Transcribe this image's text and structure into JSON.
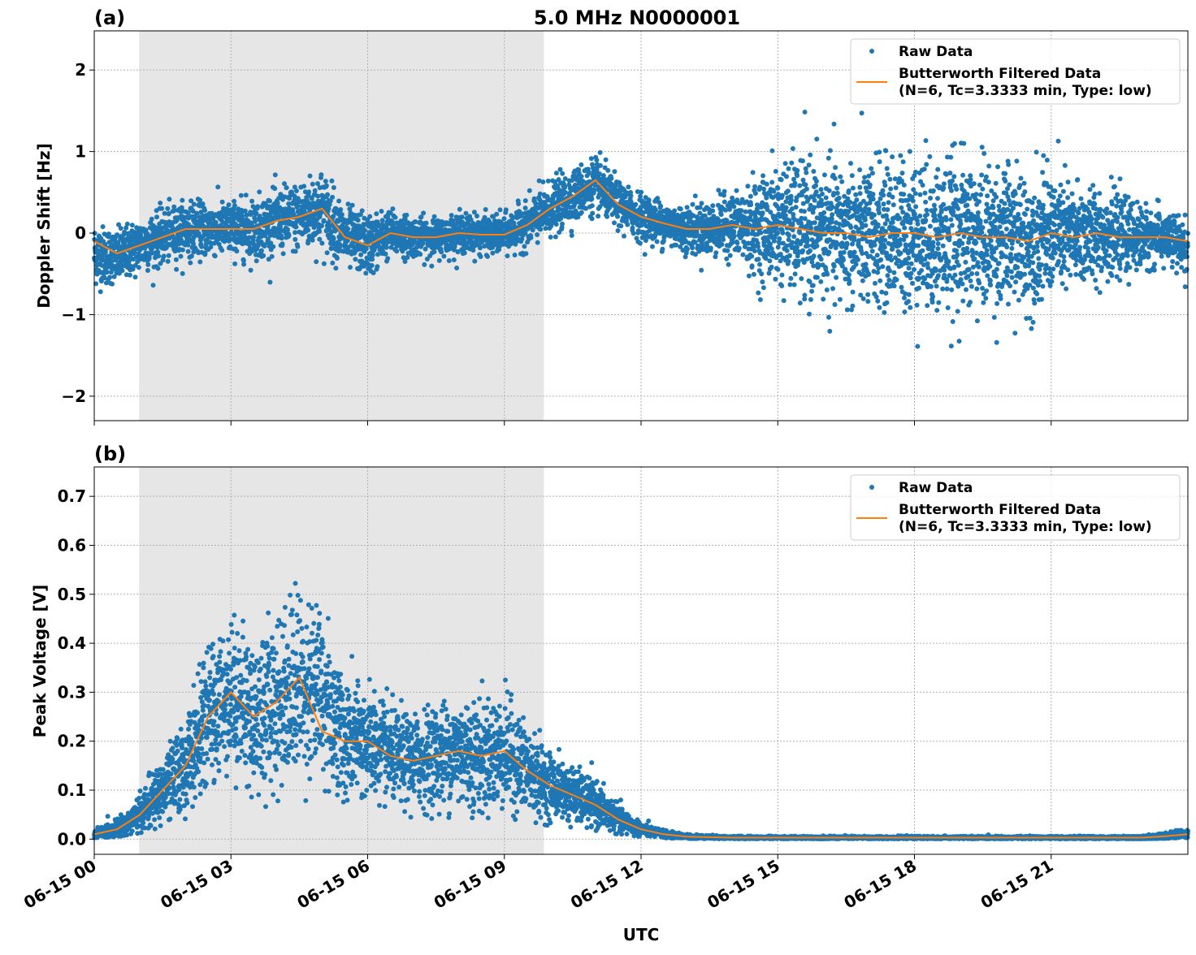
{
  "chart_data": [
    {
      "type": "scatter",
      "panel_label": "(a)",
      "title": "5.0 MHz N0000001",
      "ylabel": "Doppler Shift [Hz]",
      "xlabel": "",
      "xlim_hours": [
        0,
        24
      ],
      "ylim": [
        -2.3,
        2.48
      ],
      "yticks": [
        -2,
        -1,
        0,
        1,
        2
      ],
      "ytick_labels": [
        "−2",
        "−1",
        "0",
        "1",
        "2"
      ],
      "grid": true,
      "legend_placement": "top-right",
      "shaded_interval_utc": [
        "00:59",
        "09:52"
      ],
      "x_hours": [
        0,
        0.5,
        1,
        1.5,
        2,
        2.5,
        3,
        3.5,
        4,
        4.5,
        5,
        5.5,
        6,
        6.5,
        7,
        7.5,
        8,
        8.5,
        9,
        9.5,
        10,
        10.5,
        11,
        11.5,
        12,
        12.5,
        13,
        13.5,
        14,
        14.5,
        15,
        15.5,
        16,
        16.5,
        17,
        17.5,
        18,
        18.5,
        19,
        19.5,
        20,
        20.5,
        21,
        21.5,
        22,
        22.5,
        23,
        23.5,
        24
      ],
      "series": [
        {
          "name": "Raw Data",
          "kind": "points",
          "color": "#1f77b4",
          "center": [
            -0.25,
            -0.3,
            -0.15,
            -0.05,
            0.05,
            0.05,
            0.05,
            0.05,
            0.15,
            0.2,
            0.3,
            -0.05,
            -0.15,
            0.0,
            -0.05,
            -0.05,
            0.0,
            -0.02,
            -0.02,
            0.1,
            0.3,
            0.45,
            0.6,
            0.35,
            0.2,
            0.12,
            0.05,
            0.05,
            0.1,
            0.05,
            0.1,
            0.05,
            0.0,
            0.0,
            -0.05,
            0.0,
            0.0,
            -0.05,
            0.0,
            -0.05,
            -0.05,
            -0.1,
            0.0,
            -0.05,
            0.0,
            -0.05,
            -0.05,
            -0.05,
            -0.2
          ],
          "spread": [
            0.4,
            0.35,
            0.35,
            0.35,
            0.35,
            0.35,
            0.35,
            0.4,
            0.4,
            0.45,
            0.5,
            0.4,
            0.4,
            0.3,
            0.25,
            0.25,
            0.25,
            0.25,
            0.25,
            0.3,
            0.35,
            0.35,
            0.35,
            0.3,
            0.3,
            0.3,
            0.3,
            0.35,
            0.4,
            0.6,
            0.8,
            0.9,
            0.9,
            0.9,
            0.95,
            0.95,
            1.0,
            1.0,
            1.0,
            0.95,
            0.9,
            0.9,
            0.8,
            0.7,
            0.6,
            0.5,
            0.4,
            0.35,
            0.35
          ]
        },
        {
          "name": "Butterworth Filtered Data\n(N=6, Tc=3.3333 min, Type: low)",
          "kind": "line",
          "color": "#ff7f0e",
          "values": [
            -0.1,
            -0.25,
            -0.15,
            -0.05,
            0.05,
            0.05,
            0.05,
            0.05,
            0.15,
            0.2,
            0.3,
            -0.05,
            -0.15,
            0.0,
            -0.05,
            -0.05,
            0.0,
            -0.02,
            -0.02,
            0.1,
            0.3,
            0.45,
            0.65,
            0.35,
            0.2,
            0.12,
            0.05,
            0.05,
            0.1,
            0.05,
            0.1,
            0.05,
            0.0,
            0.0,
            -0.05,
            0.0,
            0.0,
            -0.05,
            0.0,
            -0.05,
            -0.05,
            -0.1,
            0.0,
            -0.05,
            0.0,
            -0.05,
            -0.05,
            -0.05,
            -0.1
          ]
        }
      ]
    },
    {
      "type": "scatter",
      "panel_label": "(b)",
      "title": "",
      "ylabel": "Peak Voltage [V]",
      "xlabel": "UTC",
      "xlim_hours": [
        0,
        24
      ],
      "ylim": [
        -0.031,
        0.76
      ],
      "yticks": [
        0,
        0.1,
        0.2,
        0.3,
        0.4,
        0.5,
        0.6,
        0.7
      ],
      "ytick_labels": [
        "0.0",
        "0.1",
        "0.2",
        "0.3",
        "0.4",
        "0.5",
        "0.6",
        "0.7"
      ],
      "xticks_hours": [
        0,
        3,
        6,
        9,
        12,
        15,
        18,
        21
      ],
      "xtick_labels": [
        "06-15 00",
        "06-15 03",
        "06-15 06",
        "06-15 09",
        "06-15 12",
        "06-15 15",
        "06-15 18",
        "06-15 21"
      ],
      "grid": true,
      "legend_placement": "top-right",
      "shaded_interval_utc": [
        "00:59",
        "09:52"
      ],
      "x_hours": [
        0,
        0.5,
        1,
        1.5,
        2,
        2.5,
        3,
        3.5,
        4,
        4.5,
        5,
        5.5,
        6,
        6.5,
        7,
        7.5,
        8,
        8.5,
        9,
        9.5,
        10,
        10.5,
        11,
        11.5,
        12,
        12.5,
        13,
        13.5,
        14,
        14.5,
        15,
        15.5,
        16,
        16.5,
        17,
        17.5,
        18,
        18.5,
        19,
        19.5,
        20,
        20.5,
        21,
        21.5,
        22,
        22.5,
        23,
        23.5,
        24
      ],
      "series": [
        {
          "name": "Raw Data",
          "kind": "points",
          "color": "#1f77b4",
          "center": [
            0.01,
            0.02,
            0.05,
            0.1,
            0.15,
            0.25,
            0.3,
            0.25,
            0.28,
            0.32,
            0.3,
            0.2,
            0.2,
            0.17,
            0.16,
            0.17,
            0.18,
            0.17,
            0.18,
            0.14,
            0.11,
            0.09,
            0.07,
            0.04,
            0.02,
            0.01,
            0.005,
            0.004,
            0.003,
            0.003,
            0.003,
            0.003,
            0.003,
            0.003,
            0.003,
            0.003,
            0.003,
            0.003,
            0.003,
            0.003,
            0.003,
            0.003,
            0.003,
            0.003,
            0.003,
            0.003,
            0.003,
            0.006,
            0.012
          ],
          "spread": [
            0.01,
            0.02,
            0.04,
            0.07,
            0.1,
            0.14,
            0.16,
            0.16,
            0.18,
            0.2,
            0.18,
            0.13,
            0.12,
            0.1,
            0.1,
            0.11,
            0.12,
            0.12,
            0.12,
            0.1,
            0.07,
            0.06,
            0.05,
            0.03,
            0.015,
            0.008,
            0.005,
            0.004,
            0.003,
            0.003,
            0.003,
            0.003,
            0.003,
            0.003,
            0.003,
            0.003,
            0.003,
            0.003,
            0.003,
            0.003,
            0.003,
            0.003,
            0.003,
            0.003,
            0.003,
            0.003,
            0.004,
            0.007,
            0.01
          ]
        },
        {
          "name": "Butterworth Filtered Data\n(N=6, Tc=3.3333 min, Type: low)",
          "kind": "line",
          "color": "#ff7f0e",
          "values": [
            0.01,
            0.02,
            0.05,
            0.1,
            0.15,
            0.25,
            0.3,
            0.25,
            0.28,
            0.33,
            0.22,
            0.2,
            0.2,
            0.17,
            0.16,
            0.17,
            0.18,
            0.17,
            0.18,
            0.14,
            0.11,
            0.09,
            0.07,
            0.04,
            0.02,
            0.01,
            0.005,
            0.004,
            0.003,
            0.003,
            0.003,
            0.003,
            0.003,
            0.003,
            0.003,
            0.003,
            0.003,
            0.003,
            0.003,
            0.003,
            0.003,
            0.003,
            0.003,
            0.003,
            0.003,
            0.003,
            0.003,
            0.006,
            0.01
          ]
        }
      ]
    }
  ],
  "legend": {
    "raw": "Raw Data",
    "filtered_line1": "Butterworth Filtered Data",
    "filtered_line2": "(N=6, Tc=3.3333 min, Type: low)"
  }
}
